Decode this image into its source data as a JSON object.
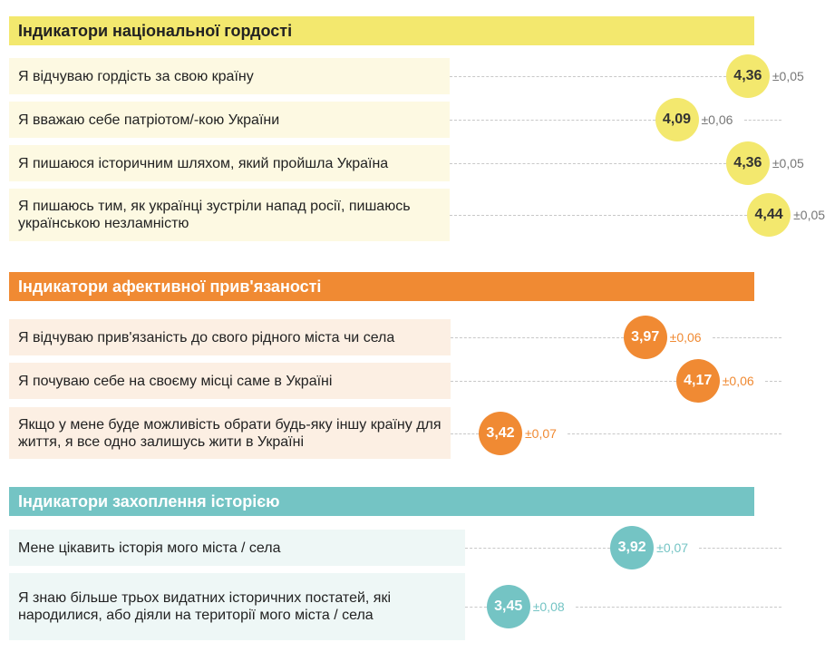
{
  "chart_data": {
    "type": "dot",
    "sections": [
      {
        "title": "Індикатори національної гордості",
        "header_color": "#f3e86e",
        "header_text_color": "#222222",
        "box_color": "#fdf9e2",
        "circle_color": "#f3e86e",
        "circle_text_color": "#333333",
        "error_color": "#777777",
        "items": [
          {
            "label": "Я відчуваю гордість за свою країну",
            "value": 4.36,
            "value_label": "4,36",
            "error_label": "±0,05"
          },
          {
            "label": "Я вважаю себе патріотом/-кою України",
            "value": 4.09,
            "value_label": "4,09",
            "error_label": "±0,06"
          },
          {
            "label": "Я пишаюся історичним шляхом, який пройшла Україна",
            "value": 4.36,
            "value_label": "4,36",
            "error_label": "±0,05"
          },
          {
            "label": "Я пишаюсь тим, як українці зустріли напад росії, пишаюсь українською незламністю",
            "value": 4.44,
            "value_label": "4,44",
            "error_label": "±0,05"
          }
        ]
      },
      {
        "title": "Індикатори афективної прив'язаності",
        "header_color": "#f08a33",
        "header_text_color": "#ffffff",
        "box_color": "#fcefe3",
        "circle_color": "#f08a33",
        "circle_text_color": "#ffffff",
        "error_color": "#f08a33",
        "items": [
          {
            "label": "Я відчуваю прив'язаність до свого рідного міста чи села",
            "value": 3.97,
            "value_label": "3,97",
            "error_label": "±0,06"
          },
          {
            "label": "Я почуваю себе на своєму місці саме в Україні",
            "value": 4.17,
            "value_label": "4,17",
            "error_label": "±0,06"
          },
          {
            "label": "Якщо у мене буде можливість обрати будь-яку іншу країну для життя, я все одно залишусь жити в Україні",
            "value": 3.42,
            "value_label": "3,42",
            "error_label": "±0,07"
          }
        ]
      },
      {
        "title": "Індикатори захоплення історією",
        "header_color": "#74c4c4",
        "header_text_color": "#ffffff",
        "box_color": "#eef7f6",
        "circle_color": "#74c4c4",
        "circle_text_color": "#ffffff",
        "error_color": "#74c4c4",
        "items": [
          {
            "label": "Мене цікавить історія мого міста / села",
            "value": 3.92,
            "value_label": "3,92",
            "error_label": "±0,07"
          },
          {
            "label": "Я знаю більше трьох видатних історичних постатей, які народилися, або діяли на території мого міста / села",
            "value": 3.45,
            "value_label": "3,45",
            "error_label": "±0,08"
          }
        ]
      }
    ]
  }
}
